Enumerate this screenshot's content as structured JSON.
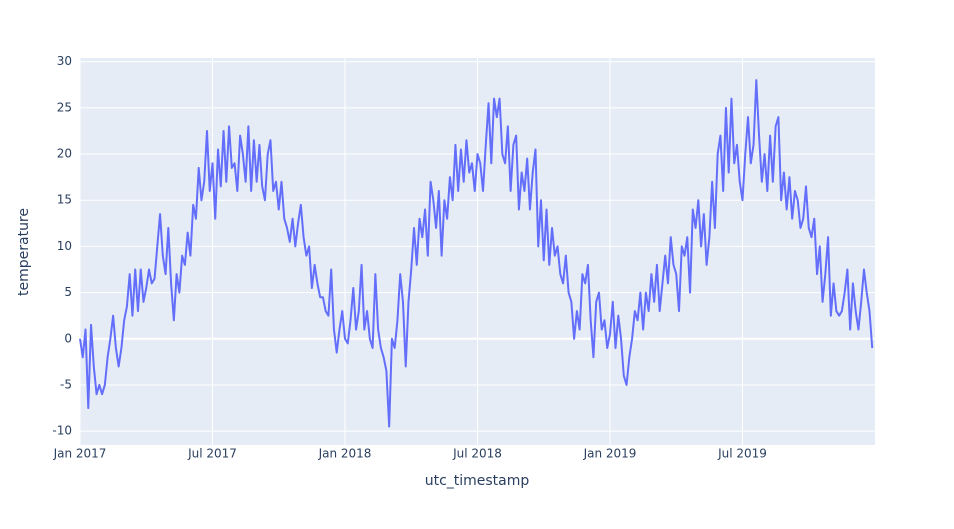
{
  "chart_data": {
    "type": "line",
    "x_label": "utc_timestamp",
    "y_label": "temperature",
    "x": [
      "2017-01",
      "2017-02",
      "2017-03",
      "2017-04",
      "2017-05",
      "2017-06",
      "2017-07",
      "2017-08",
      "2017-09",
      "2017-10",
      "2017-11",
      "2017-12",
      "2018-01",
      "2018-02",
      "2018-03",
      "2018-04",
      "2018-05",
      "2018-06",
      "2018-07",
      "2018-08",
      "2018-09",
      "2018-10",
      "2018-11",
      "2018-12",
      "2019-01",
      "2019-02",
      "2019-03",
      "2019-04",
      "2019-05",
      "2019-06",
      "2019-07",
      "2019-08",
      "2019-09",
      "2019-10",
      "2019-11",
      "2019-12"
    ],
    "series": [
      {
        "name": "temperature",
        "color": "#636efa",
        "values": [
          [
            0,
            -2,
            1,
            -7.5,
            1.5,
            -3,
            -6,
            -5
          ],
          [
            -6,
            -5,
            -2,
            0,
            2.5,
            -1,
            -3,
            -1
          ],
          [
            2,
            3.5,
            7,
            2.5,
            7.5,
            3,
            7.5,
            4
          ],
          [
            5.5,
            7.5,
            6,
            6.5,
            10,
            13.5,
            9,
            7
          ],
          [
            12,
            6,
            2,
            7,
            5,
            9,
            8,
            11.5
          ],
          [
            9,
            14.5,
            13,
            18.5,
            15,
            17,
            22.5,
            16
          ],
          [
            19,
            13,
            20.5,
            16.5,
            22.5,
            17,
            23,
            18.5
          ],
          [
            19,
            16,
            22,
            20,
            17,
            23,
            16,
            21.5
          ],
          [
            17,
            21,
            16.5,
            15,
            20,
            21.5,
            16,
            17
          ],
          [
            14,
            17,
            13,
            12,
            10.5,
            13,
            10,
            12.5
          ],
          [
            14.5,
            11,
            9,
            10,
            5.5,
            8,
            6,
            4.5
          ],
          [
            4.5,
            3,
            2.5,
            7.5,
            1,
            -1.5,
            1,
            3
          ],
          [
            0,
            -0.5,
            2,
            5.5,
            1,
            3,
            8,
            1
          ],
          [
            3,
            0,
            -1,
            7,
            1,
            -1,
            -2,
            -3.5
          ],
          [
            -9.5,
            0,
            -1,
            2,
            7,
            4,
            -3,
            4
          ],
          [
            7.5,
            12,
            8,
            13,
            11,
            14,
            9,
            17
          ],
          [
            15,
            12,
            16,
            9,
            15,
            13,
            17.5,
            15
          ],
          [
            21,
            16,
            20.5,
            17,
            21.5,
            18,
            19,
            16
          ],
          [
            20,
            19,
            16,
            21,
            25.5,
            19,
            26,
            24
          ],
          [
            26,
            20,
            19,
            23,
            16,
            21,
            22,
            14
          ],
          [
            18,
            16,
            19.5,
            14,
            18,
            20.5,
            10,
            15
          ],
          [
            8.5,
            14,
            8,
            12,
            9,
            10,
            7,
            6
          ],
          [
            9,
            5,
            4,
            0,
            3,
            1,
            7,
            6
          ],
          [
            8,
            2,
            -2,
            4,
            5,
            1,
            2,
            -1
          ],
          [
            0.5,
            4,
            -1,
            2.5,
            0,
            -4,
            -5,
            -2
          ],
          [
            0,
            3,
            2,
            5,
            1,
            5,
            3,
            7
          ],
          [
            4,
            8,
            3,
            6,
            9,
            6,
            11,
            8
          ],
          [
            7,
            3,
            10,
            9,
            11,
            5,
            14,
            12
          ],
          [
            15,
            10,
            13.5,
            8,
            11,
            17,
            12,
            20
          ],
          [
            22,
            16,
            25,
            18,
            26,
            19,
            21,
            17
          ],
          [
            15,
            20,
            24,
            19,
            21,
            28,
            22,
            17
          ],
          [
            20,
            16,
            22,
            17,
            23,
            24,
            15,
            18
          ],
          [
            14,
            17.5,
            13,
            16,
            15,
            12,
            13,
            16.5
          ],
          [
            12,
            11,
            13,
            7,
            10,
            4,
            7,
            11
          ],
          [
            2.5,
            6,
            3,
            2.5,
            3,
            5,
            7.5,
            1
          ],
          [
            6,
            3,
            1,
            4,
            7.5,
            5,
            3,
            -1
          ]
        ]
      }
    ],
    "xlim": [
      "2017-01",
      "2019-12"
    ],
    "xticks": [
      {
        "value": "2017-01",
        "label": "Jan 2017"
      },
      {
        "value": "2017-07",
        "label": "Jul 2017"
      },
      {
        "value": "2018-01",
        "label": "Jan 2018"
      },
      {
        "value": "2018-07",
        "label": "Jul 2018"
      },
      {
        "value": "2019-01",
        "label": "Jan 2019"
      },
      {
        "value": "2019-07",
        "label": "Jul 2019"
      }
    ],
    "ylim": [
      -11.5,
      30.4
    ],
    "yticks": [
      -10,
      -5,
      0,
      5,
      10,
      15,
      20,
      25,
      30
    ],
    "grid": true
  }
}
